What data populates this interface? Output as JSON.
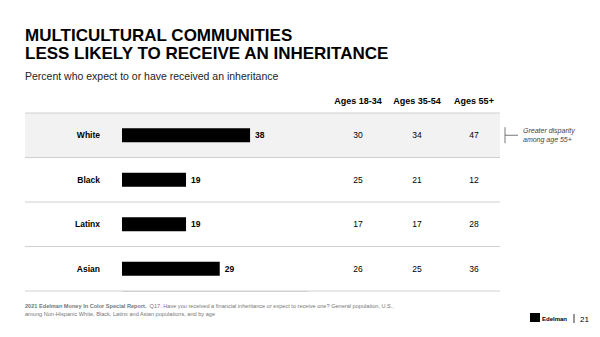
{
  "chart_data": {
    "type": "bar",
    "title": [
      "MULTICULTURAL COMMUNITIES",
      "LESS LIKELY TO RECEIVE AN INHERITANCE"
    ],
    "subtitle": "Percent who expect to or have received an inheritance",
    "categories": [
      "White",
      "Black",
      "Latinx",
      "Asian"
    ],
    "values": [
      38,
      19,
      19,
      29
    ],
    "color": "#000000",
    "orientation": "horizontal",
    "data_labels": true,
    "tick_labels": "y",
    "xlim": [
      0,
      55
    ],
    "xticks": []
  },
  "age_table": {
    "columns": [
      "Ages 18-34",
      "Ages 35-54",
      "Ages 55+"
    ],
    "rows": [
      [
        30,
        34,
        47
      ],
      [
        25,
        21,
        12
      ],
      [
        17,
        17,
        28
      ],
      [
        26,
        25,
        36
      ]
    ]
  },
  "annotation": [
    "Greater disparity",
    "among age 55+"
  ],
  "footer": {
    "source": "2021 Edelman Money In Color Special Report.",
    "note": [
      "Q17. Have you received a financial inheritance or expect to receive one? General population, U.S.,",
      "among Non-Hispanic White, Black, Latinx and Asian populations, and by age"
    ]
  },
  "logo": "Edelman",
  "page": 21
}
